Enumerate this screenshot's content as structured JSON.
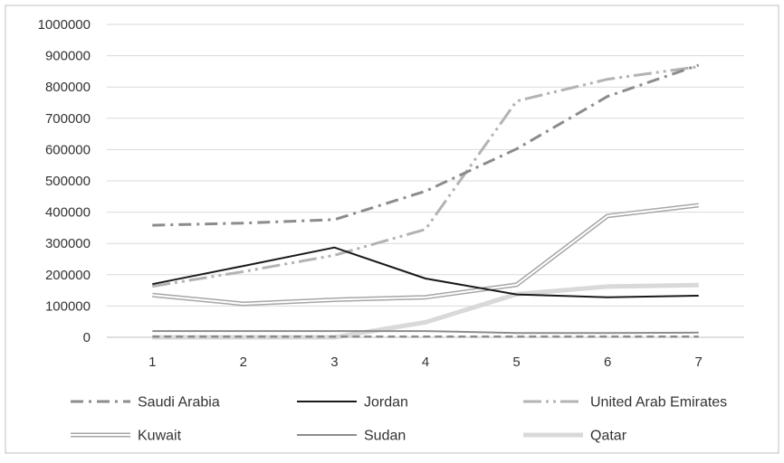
{
  "chart_data": {
    "type": "line",
    "title": "",
    "xlabel": "",
    "ylabel": "",
    "x": [
      1,
      2,
      3,
      4,
      5,
      6,
      7
    ],
    "xticks": [
      "1",
      "2",
      "3",
      "4",
      "5",
      "6",
      "7"
    ],
    "ylim": [
      0,
      1000000
    ],
    "yticks": [
      "0",
      "100000",
      "200000",
      "300000",
      "400000",
      "500000",
      "600000",
      "700000",
      "800000",
      "900000",
      "1000000"
    ],
    "grid": "horizontal",
    "legend_position": "bottom",
    "series": [
      {
        "name": "Saudi Arabia",
        "values": [
          358000,
          365000,
          376000,
          467000,
          602000,
          770000,
          870000
        ],
        "color": "#8c8c8c",
        "style": "dash-dot"
      },
      {
        "name": "Jordan",
        "values": [
          170000,
          228000,
          287000,
          188000,
          137000,
          128000,
          133000
        ],
        "color": "#1a1a1a",
        "style": "solid"
      },
      {
        "name": "United Arab Emirates",
        "values": [
          163000,
          210000,
          262000,
          345000,
          755000,
          825000,
          865000
        ],
        "color": "#b3b3b3",
        "style": "long-dash-dot-dot"
      },
      {
        "name": "Kuwait",
        "values": [
          135000,
          107000,
          120000,
          128000,
          168000,
          388000,
          422000
        ],
        "color": "#a6a6a6",
        "style": "double"
      },
      {
        "name": "Sudan",
        "values": [
          20000,
          20000,
          20000,
          20000,
          14000,
          14000,
          15000
        ],
        "color": "#8c8c8c",
        "style": "solid"
      },
      {
        "name": "Qatar",
        "values": [
          0,
          0,
          0,
          48000,
          138000,
          162000,
          167000
        ],
        "color": "#d9d9d9",
        "style": "thick"
      },
      {
        "name": "",
        "values": [
          2000,
          2000,
          2000,
          2000,
          2000,
          2000,
          2000
        ],
        "color": "#8c8c8c",
        "style": "dashed"
      }
    ]
  }
}
